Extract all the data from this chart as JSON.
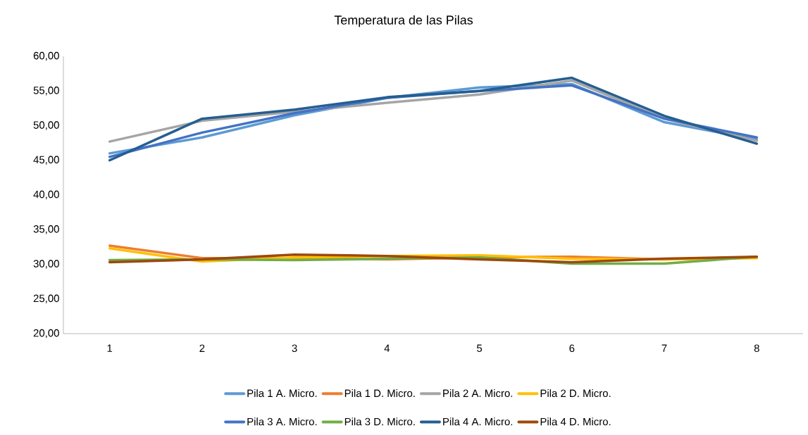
{
  "chart_data": {
    "type": "line",
    "title": "Temperatura de las Pilas",
    "categories": [
      "1",
      "2",
      "3",
      "4",
      "5",
      "6",
      "7",
      "8"
    ],
    "ylim": [
      20,
      60
    ],
    "yticks": [
      {
        "value": 20,
        "label": "20,00"
      },
      {
        "value": 25,
        "label": "25,00"
      },
      {
        "value": 30,
        "label": "30,00"
      },
      {
        "value": 35,
        "label": "35,00"
      },
      {
        "value": 40,
        "label": "40,00"
      },
      {
        "value": 45,
        "label": "45,00"
      },
      {
        "value": 50,
        "label": "50,00"
      },
      {
        "value": 55,
        "label": "55,00"
      },
      {
        "value": 60,
        "label": "60,00"
      }
    ],
    "grid": false,
    "legend": "bottom",
    "marker": "none",
    "line_style": "solid",
    "series": [
      {
        "name": "Pila 1 A. Micro.",
        "color": "#5b9bd5",
        "values": [
          46.0,
          48.3,
          51.5,
          54.0,
          55.5,
          56.0,
          50.5,
          48.0
        ]
      },
      {
        "name": "Pila 1 D. Micro.",
        "color": "#ed7d31",
        "values": [
          32.7,
          30.9,
          30.9,
          30.7,
          31.0,
          31.1,
          30.7,
          31.0
        ]
      },
      {
        "name": "Pila 2 A. Micro.",
        "color": "#a5a5a5",
        "values": [
          47.7,
          50.7,
          52.0,
          53.3,
          54.5,
          56.5,
          51.0,
          47.8
        ]
      },
      {
        "name": "Pila 2 D. Micro.",
        "color": "#ffc000",
        "values": [
          32.3,
          30.4,
          31.0,
          31.2,
          31.3,
          30.8,
          30.7,
          30.9
        ]
      },
      {
        "name": "Pila 3 A. Micro.",
        "color": "#4472c4",
        "values": [
          45.5,
          49.0,
          51.8,
          54.0,
          55.0,
          55.8,
          51.0,
          48.3
        ]
      },
      {
        "name": "Pila 3 D. Micro.",
        "color": "#70ad47",
        "values": [
          30.6,
          30.7,
          30.6,
          30.8,
          31.0,
          30.1,
          30.1,
          31.1
        ]
      },
      {
        "name": "Pila 4 A. Micro.",
        "color": "#255e91",
        "values": [
          45.0,
          51.0,
          52.3,
          54.1,
          55.0,
          56.9,
          51.4,
          47.4
        ]
      },
      {
        "name": "Pila 4 D. Micro.",
        "color": "#9e480e",
        "values": [
          30.3,
          30.7,
          31.4,
          31.2,
          30.7,
          30.3,
          30.8,
          31.1
        ]
      }
    ]
  }
}
